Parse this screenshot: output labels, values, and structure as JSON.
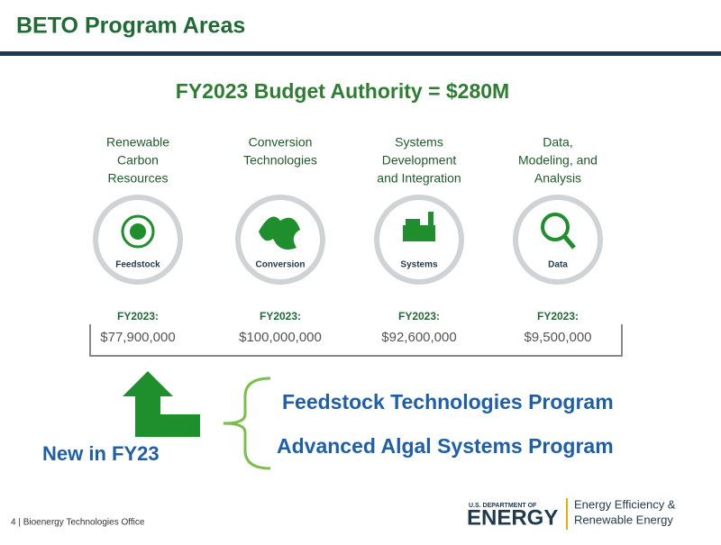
{
  "header": {
    "title": "BETO Program Areas"
  },
  "subtitle": "FY2023 Budget Authority = $280M",
  "areas": [
    {
      "lines": [
        "Renewable",
        "Carbon",
        "Resources"
      ],
      "icon_label": "Feedstock",
      "fy_label": "FY2023:",
      "budget": "$77,900,000"
    },
    {
      "lines": [
        "Conversion",
        "Technologies"
      ],
      "icon_label": "Conversion",
      "fy_label": "FY2023:",
      "budget": "$100,000,000"
    },
    {
      "lines": [
        "Systems",
        "Development",
        "and Integration"
      ],
      "icon_label": "Systems",
      "fy_label": "FY2023:",
      "budget": "$92,600,000"
    },
    {
      "lines": [
        "Data,",
        "Modeling, and",
        "Analysis"
      ],
      "icon_label": "Data",
      "fy_label": "FY2023:",
      "budget": "$9,500,000"
    }
  ],
  "new_label": "New in FY23",
  "programs": [
    "Feedstock Technologies Program",
    "Advanced Algal Systems Program"
  ],
  "footer": {
    "text": "4 | Bioenergy Technologies Office"
  },
  "logo": {
    "dept": "U.S. DEPARTMENT OF",
    "energy": "ENERGY",
    "office_lines": [
      "Energy Efficiency &",
      "Renewable Energy"
    ]
  }
}
